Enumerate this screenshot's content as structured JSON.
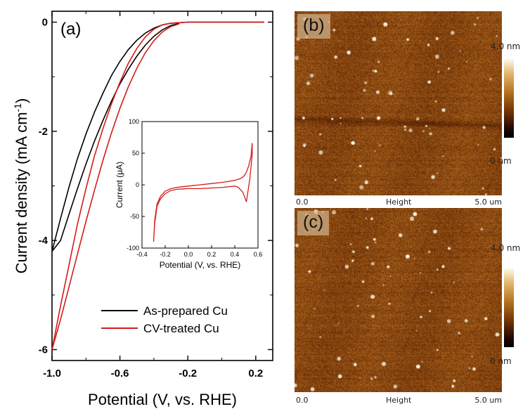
{
  "chart_data": [
    {
      "type": "line",
      "panel_label": "(a)",
      "xlabel": "Potential (V, vs. RHE)",
      "ylabel": "Current density (mA cm",
      "ylabel_sup": "-1",
      "ylabel_close": ")",
      "xlim": [
        -1.0,
        0.3
      ],
      "ylim": [
        -6.2,
        0.2
      ],
      "xticks": [
        -1.0,
        -0.6,
        -0.2,
        0.2
      ],
      "xtick_labels": [
        "-1.0",
        "-0.6",
        "-0.2",
        "0.2"
      ],
      "yticks": [
        0,
        -2,
        -4,
        -6
      ],
      "ytick_labels": [
        "0",
        "-2",
        "-4",
        "-6"
      ],
      "legend_position": "bottom-right",
      "series": [
        {
          "name": "As-prepared Cu",
          "color": "#000000",
          "x": [
            -1.0,
            -0.95,
            -0.9,
            -0.85,
            -0.8,
            -0.75,
            -0.7,
            -0.65,
            -0.6,
            -0.55,
            -0.5,
            -0.45,
            -0.4,
            -0.35,
            -0.3,
            -0.25,
            -0.2,
            -0.15,
            -0.1,
            0.0,
            0.1,
            0.2,
            0.25
          ],
          "y": [
            -4.2,
            -3.6,
            -3.02,
            -2.5,
            -2.05,
            -1.65,
            -1.3,
            -0.98,
            -0.72,
            -0.5,
            -0.33,
            -0.2,
            -0.11,
            -0.05,
            -0.02,
            -0.01,
            0.0,
            0.0,
            0.0,
            0.0,
            0.0,
            0.0,
            0.0
          ],
          "x_return": [
            -0.25,
            -0.3,
            -0.35,
            -0.4,
            -0.45,
            -0.5,
            -0.55,
            -0.6,
            -0.65,
            -0.7,
            -0.75,
            -0.8,
            -0.85,
            -0.9,
            -0.95,
            -1.0
          ],
          "y_return": [
            -0.02,
            -0.06,
            -0.14,
            -0.26,
            -0.42,
            -0.62,
            -0.86,
            -1.13,
            -1.45,
            -1.8,
            -2.18,
            -2.6,
            -3.05,
            -3.52,
            -4.0,
            -4.2
          ]
        },
        {
          "name": "CV-treated Cu",
          "color": "#d41c1c",
          "x": [
            -1.0,
            -0.95,
            -0.9,
            -0.85,
            -0.8,
            -0.75,
            -0.7,
            -0.65,
            -0.6,
            -0.55,
            -0.5,
            -0.45,
            -0.4,
            -0.35,
            -0.3,
            -0.25,
            -0.2,
            -0.1,
            0.0,
            0.1,
            0.2,
            0.25
          ],
          "y": [
            -6.0,
            -5.2,
            -4.45,
            -3.7,
            -3.05,
            -2.45,
            -1.95,
            -1.5,
            -1.1,
            -0.75,
            -0.48,
            -0.27,
            -0.13,
            -0.05,
            -0.02,
            -0.01,
            0.0,
            0.0,
            0.0,
            0.0,
            0.0,
            0.0
          ],
          "x_return": [
            -0.25,
            -0.3,
            -0.35,
            -0.4,
            -0.45,
            -0.5,
            -0.55,
            -0.6,
            -0.65,
            -0.7,
            -0.75,
            -0.8,
            -0.85,
            -0.9,
            -0.95,
            -1.0
          ],
          "y_return": [
            -0.03,
            -0.08,
            -0.18,
            -0.34,
            -0.56,
            -0.84,
            -1.18,
            -1.58,
            -2.03,
            -2.53,
            -3.08,
            -3.65,
            -4.25,
            -4.85,
            -5.45,
            -6.0
          ]
        }
      ]
    },
    {
      "type": "line",
      "position": "inset",
      "xlabel": "Potential (V, vs. RHE)",
      "ylabel": "Current (μA)",
      "xlim": [
        -0.4,
        0.6
      ],
      "ylim": [
        -100,
        100
      ],
      "xticks": [
        -0.4,
        -0.2,
        0.0,
        0.2,
        0.4,
        0.6
      ],
      "xtick_labels": [
        "-0.4",
        "-0.2",
        "0.0",
        "0.2",
        "0.4",
        "0.6"
      ],
      "yticks": [
        100,
        50,
        0,
        -50,
        -100
      ],
      "ytick_labels": [
        "100",
        "50",
        "0",
        "-50",
        "-100"
      ],
      "series": [
        {
          "color": "#d41c1c",
          "x": [
            -0.3,
            -0.29,
            -0.27,
            -0.24,
            -0.2,
            -0.15,
            -0.1,
            0.0,
            0.1,
            0.2,
            0.3,
            0.4,
            0.45,
            0.48,
            0.5,
            0.52,
            0.54,
            0.55,
            0.55,
            0.53,
            0.5,
            0.47,
            0.43,
            0.4,
            0.3,
            0.2,
            0.1,
            0.0,
            -0.1,
            -0.15,
            -0.2,
            -0.24,
            -0.27,
            -0.29,
            -0.3
          ],
          "y": [
            -90,
            -55,
            -30,
            -18,
            -10,
            -6,
            -4,
            -2,
            0,
            2,
            4,
            7,
            10,
            14,
            20,
            30,
            45,
            66,
            48,
            10,
            -27,
            -12,
            -4,
            -2,
            -4,
            -5,
            -6,
            -6,
            -7,
            -9,
            -14,
            -22,
            -34,
            -60,
            -90
          ]
        }
      ]
    }
  ],
  "afm_panels": {
    "b": {
      "label": "(b)",
      "scale_start": "0.0",
      "scale_mid": "Height",
      "scale_end": "5.0 um",
      "colorbar_max": "4.0 nm",
      "colorbar_min": "0 nm"
    },
    "c": {
      "label": "(c)",
      "scale_start": "0.0",
      "scale_mid": "Height",
      "scale_end": "5.0 um",
      "colorbar_max": "4.0 nm",
      "colorbar_min": "0 nm"
    }
  }
}
